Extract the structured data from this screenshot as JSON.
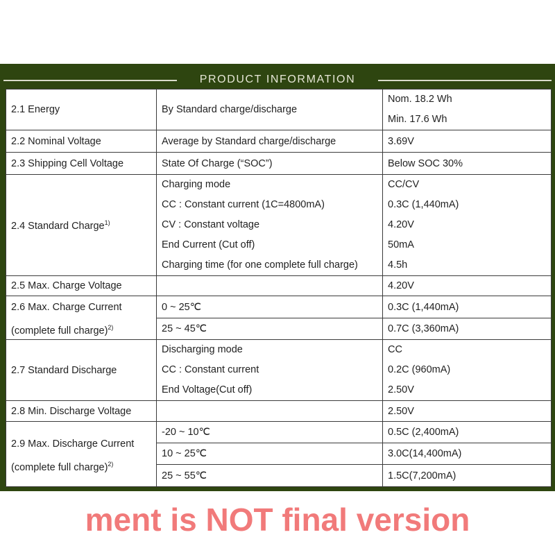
{
  "header": {
    "title": "PRODUCT INFORMATION"
  },
  "colors": {
    "band": "#2e4510",
    "watermark": "#ec4646"
  },
  "rows": {
    "energy": {
      "label": "2.1 Energy",
      "condition": "By Standard charge/discharge",
      "values": [
        "Nom. 18.2 Wh",
        "Min. 17.6 Wh"
      ]
    },
    "nominal_voltage": {
      "label": "2.2 Nominal Voltage",
      "condition": "Average by Standard charge/discharge",
      "value": "3.69V"
    },
    "shipping_voltage": {
      "label": "2.3 Shipping Cell Voltage",
      "condition": "State Of Charge (“SOC”)",
      "value": "Below SOC 30%"
    },
    "standard_charge": {
      "label": "2.4 Standard Charge",
      "sup": "1)",
      "conditions": [
        "Charging mode",
        "CC : Constant current (1C=4800mA)",
        "CV : Constant voltage",
        "End Current (Cut off)",
        "Charging time (for one complete full charge)"
      ],
      "values": [
        "CC/CV",
        "0.3C (1,440mA)",
        "4.20V",
        "50mA",
        "4.5h"
      ]
    },
    "max_charge_voltage": {
      "label": "2.5 Max. Charge Voltage",
      "condition": "",
      "value": "4.20V"
    },
    "max_charge_current": {
      "label": "2.6 Max. Charge Current",
      "label2": "(complete full charge)",
      "sup": "2)",
      "conditions": [
        "0 ~ 25℃",
        "25 ~ 45℃"
      ],
      "values": [
        "0.3C (1,440mA)",
        "0.7C (3,360mA)"
      ]
    },
    "standard_discharge": {
      "label": "2.7 Standard Discharge",
      "conditions": [
        "Discharging mode",
        "CC : Constant current",
        "End Voltage(Cut off)"
      ],
      "values": [
        "CC",
        "0.2C (960mA)",
        "2.50V"
      ]
    },
    "min_discharge_voltage": {
      "label": "2.8 Min. Discharge Voltage",
      "condition": "",
      "value": "2.50V"
    },
    "max_discharge_current": {
      "label": "2.9 Max. Discharge Current",
      "label2": "(complete full charge)",
      "sup": "2)",
      "conditions": [
        "-20 ~ 10℃",
        "10 ~ 25℃",
        "25 ~ 55℃"
      ],
      "values": [
        "0.5C (2,400mA)",
        "3.0C(14,400mA)",
        "1.5C(7,200mA)"
      ]
    }
  },
  "watermark": "ment is NOT final version"
}
